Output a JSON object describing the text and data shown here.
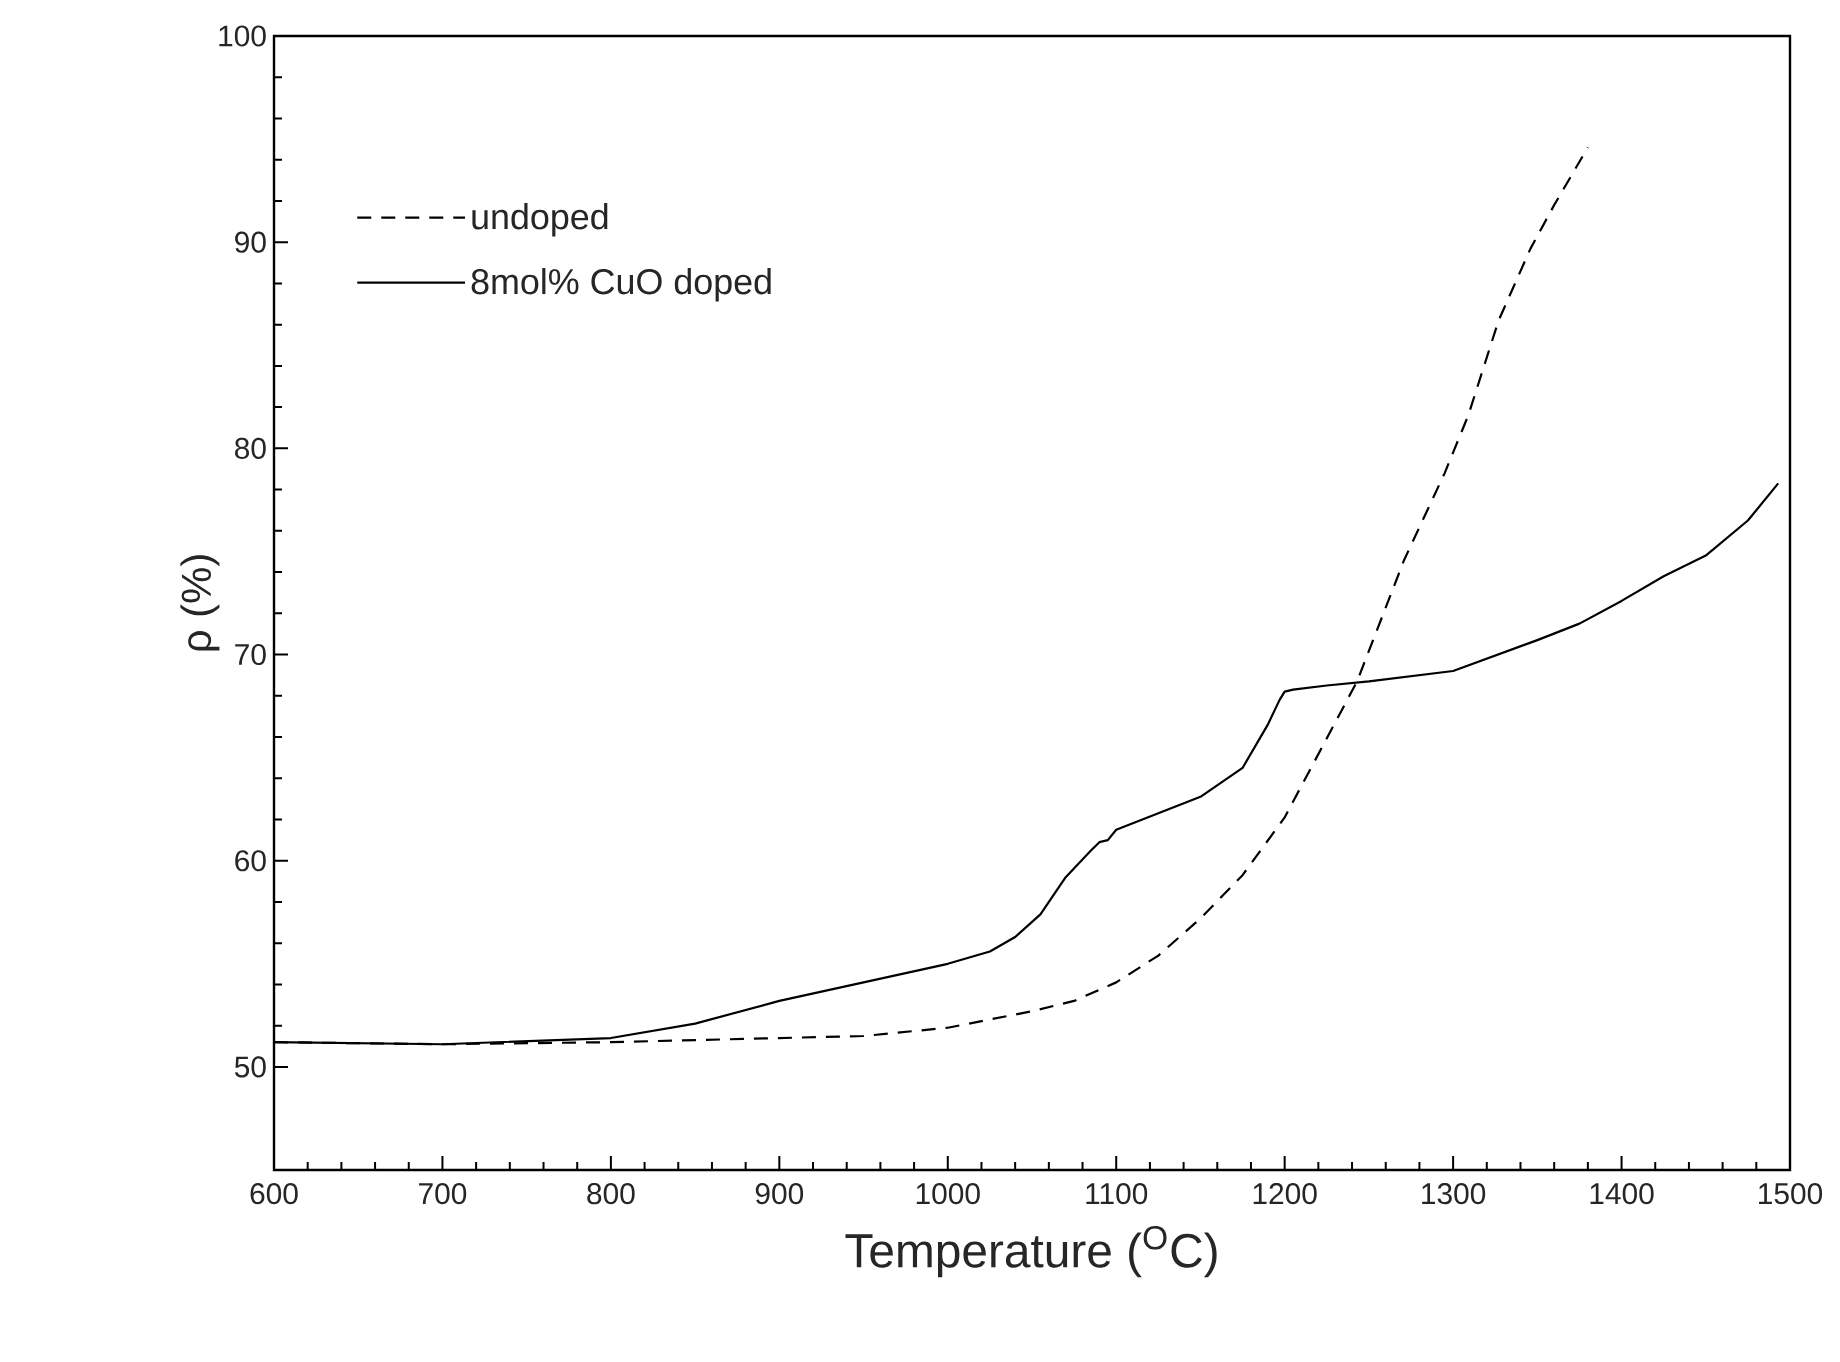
{
  "chart_data": {
    "type": "line",
    "xlabel": "Temperature ($^{O}$C)",
    "ylabel": "ρ (%)",
    "xlim": [
      600,
      1500
    ],
    "ylim": [
      45,
      100
    ],
    "xticks": [
      600,
      700,
      800,
      900,
      1000,
      1100,
      1200,
      1300,
      1400,
      1500
    ],
    "yticks": [
      50,
      60,
      70,
      80,
      90,
      100
    ],
    "grid": false,
    "legend": "top left",
    "series": [
      {
        "name": "undoped",
        "color": "#000000",
        "line_style": "dashed",
        "x": [
          600,
          700,
          800,
          900,
          950,
          1000,
          1050,
          1075,
          1100,
          1125,
          1150,
          1175,
          1200,
          1243,
          1271,
          1295,
          1309,
          1327,
          1346,
          1360,
          1380
        ],
        "values": [
          51.2,
          51.1,
          51.2,
          51.4,
          51.5,
          51.9,
          52.7,
          53.2,
          54.1,
          55.4,
          57.2,
          59.3,
          62.1,
          68.7,
          74.6,
          78.8,
          81.6,
          86.2,
          89.7,
          91.8,
          94.6
        ]
      },
      {
        "name": "8mol% CuO doped",
        "color": "#000000",
        "line_style": "solid",
        "x": [
          600,
          700,
          800,
          850,
          900,
          950,
          1000,
          1025,
          1040,
          1055,
          1070,
          1085,
          1090,
          1095,
          1100,
          1150,
          1175,
          1190,
          1197,
          1200,
          1205,
          1225,
          1250,
          1300,
          1350,
          1375,
          1400,
          1425,
          1450,
          1475,
          1493
        ],
        "values": [
          51.2,
          51.1,
          51.4,
          52.1,
          53.2,
          54.1,
          55.0,
          55.6,
          56.3,
          57.4,
          59.2,
          60.5,
          60.9,
          61.0,
          61.5,
          63.1,
          64.5,
          66.6,
          67.8,
          68.2,
          68.3,
          68.5,
          68.7,
          69.2,
          70.7,
          71.5,
          72.6,
          73.8,
          74.8,
          76.5,
          78.3
        ]
      }
    ]
  }
}
